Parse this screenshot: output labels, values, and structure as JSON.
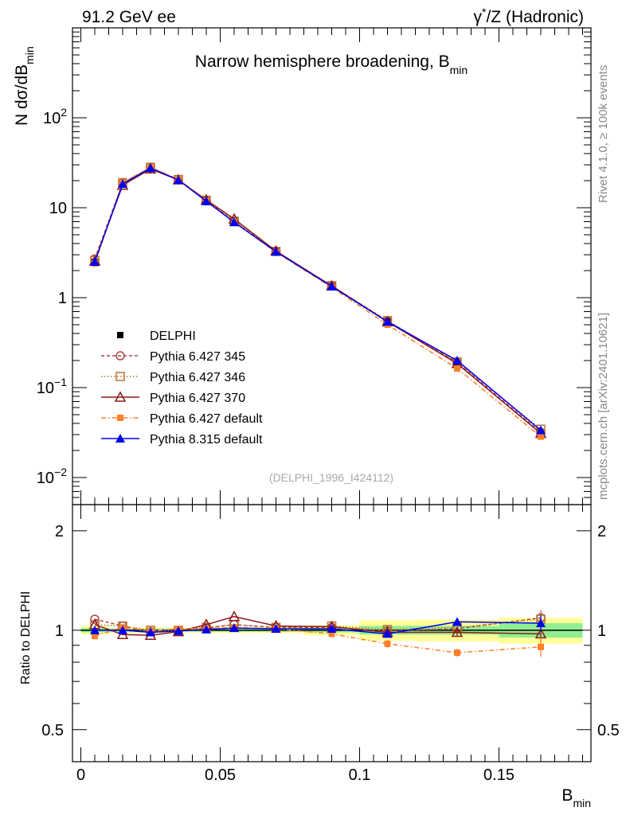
{
  "header": {
    "left": "91.2 GeV ee",
    "right_prefix": "γ",
    "right_sup": "*",
    "right_suffix": "/Z (Hadronic)"
  },
  "side_labels": {
    "rivet": "Rivet 4.1.0, ≥ 100k events",
    "mcplots": "mcplots.cern.ch [arXiv:2401.10621]"
  },
  "main_panel": {
    "title_main": "Narrow hemisphere broadening, B",
    "title_sub": "min",
    "ylabel_main": "N  dσ/dB",
    "ylabel_sub": "min",
    "analysis_tag": "(DELPHI_1996_I424112)",
    "ytick_labels": [
      {
        "base": "10",
        "exp": "−2",
        "value": 0.01
      },
      {
        "base": "10",
        "exp": "−1",
        "value": 0.1
      },
      {
        "base": "1",
        "exp": "",
        "value": 1
      },
      {
        "base": "10",
        "exp": "",
        "value": 10
      },
      {
        "base": "10",
        "exp": "2",
        "value": 100
      }
    ]
  },
  "ratio_panel": {
    "ylabel": "Ratio to DELPHI",
    "ytick_labels": [
      "0.5",
      "1",
      "2"
    ]
  },
  "legend": [
    {
      "key": "delphi",
      "label": "DELPHI"
    },
    {
      "key": "p345",
      "label": "Pythia 6.427 345"
    },
    {
      "key": "p346",
      "label": "Pythia 6.427 346"
    },
    {
      "key": "p370",
      "label": "Pythia 6.427 370"
    },
    {
      "key": "p6def",
      "label": "Pythia 6.427 default"
    },
    {
      "key": "p8def",
      "label": "Pythia 8.315 default"
    }
  ],
  "xaxis": {
    "label_main": "B",
    "label_sub": "min",
    "tick_labels": [
      "0",
      "0.05",
      "0.1",
      "0.15"
    ]
  },
  "chart_data": {
    "type": "line",
    "title": "Narrow hemisphere broadening, B_min",
    "xlabel": "B_min",
    "ylabel": "N dσ/dB_min",
    "yscale": "log",
    "xlim": [
      -0.003,
      0.183
    ],
    "ylim": [
      0.005,
      1000
    ],
    "x": [
      0.005,
      0.015,
      0.025,
      0.035,
      0.045,
      0.055,
      0.07,
      0.09,
      0.11,
      0.135,
      0.165
    ],
    "reference": {
      "name": "DELPHI",
      "values": [
        2.5,
        18.3,
        28.0,
        20.5,
        11.8,
        6.8,
        3.2,
        1.32,
        0.55,
        0.19,
        0.032
      ],
      "band_edges": [
        0.0,
        0.01,
        0.02,
        0.03,
        0.04,
        0.05,
        0.06,
        0.08,
        0.1,
        0.12,
        0.15,
        0.18
      ],
      "stat_band": [
        0.015,
        0.01,
        0.01,
        0.01,
        0.01,
        0.01,
        0.01,
        0.015,
        0.03,
        0.03,
        0.05
      ],
      "total_band": [
        0.03,
        0.02,
        0.02,
        0.02,
        0.02,
        0.02,
        0.02,
        0.035,
        0.07,
        0.075,
        0.09
      ]
    },
    "series": [
      {
        "name": "Pythia 6.427 345",
        "key": "p345",
        "color": "#b0424b",
        "dash": "4,3",
        "marker": "circle-open",
        "values": [
          2.7,
          18.8,
          27.8,
          20.4,
          12.0,
          7.05,
          3.26,
          1.35,
          0.55,
          0.19,
          0.0318
        ],
        "ratio": [
          1.08,
          1.03,
          0.99,
          0.995,
          1.015,
          1.04,
          1.02,
          1.02,
          0.995,
          1.01,
          1.09
        ]
      },
      {
        "name": "Pythia 6.427 346",
        "key": "p346",
        "color": "#b87333",
        "dash": "1.5,2.5",
        "marker": "square-open",
        "values": [
          2.6,
          19.0,
          28.2,
          20.6,
          12.1,
          7.1,
          3.27,
          1.36,
          0.555,
          0.193,
          0.0345
        ],
        "ratio": [
          1.04,
          1.03,
          1.0,
          1.0,
          1.02,
          1.04,
          1.02,
          1.03,
          1.005,
          1.02,
          1.08
        ]
      },
      {
        "name": "Pythia 6.427 370",
        "key": "p370",
        "color": "#8b1a1a",
        "dash": "",
        "marker": "triangle-open",
        "values": [
          2.55,
          17.8,
          27.0,
          20.4,
          12.2,
          7.5,
          3.3,
          1.35,
          0.54,
          0.185,
          0.031
        ],
        "ratio": [
          1.04,
          0.97,
          0.965,
          0.99,
          1.04,
          1.1,
          1.03,
          1.025,
          0.985,
          0.985,
          0.975
        ]
      },
      {
        "name": "Pythia 6.427 default",
        "key": "p6def",
        "color": "#ff7f27",
        "dash": "6,3,1.5,3",
        "marker": "square-filled",
        "values": [
          2.4,
          18.9,
          28.0,
          20.8,
          11.9,
          6.9,
          3.2,
          1.3,
          0.5,
          0.163,
          0.0285
        ],
        "ratio": [
          0.96,
          1.02,
          0.995,
          1.01,
          1.01,
          1.02,
          1.01,
          0.975,
          0.91,
          0.855,
          0.89
        ]
      },
      {
        "name": "Pythia 8.315 default",
        "key": "p8def",
        "color": "#0000ee",
        "dash": "",
        "marker": "triangle-filled",
        "values": [
          2.5,
          18.4,
          27.6,
          20.3,
          11.8,
          6.9,
          3.24,
          1.33,
          0.54,
          0.2,
          0.0335
        ],
        "ratio": [
          1.0,
          1.0,
          0.985,
          0.995,
          1.005,
          1.015,
          1.01,
          1.01,
          0.975,
          1.06,
          1.05
        ]
      }
    ],
    "ratio_ylim": [
      0.4,
      2.4
    ]
  }
}
